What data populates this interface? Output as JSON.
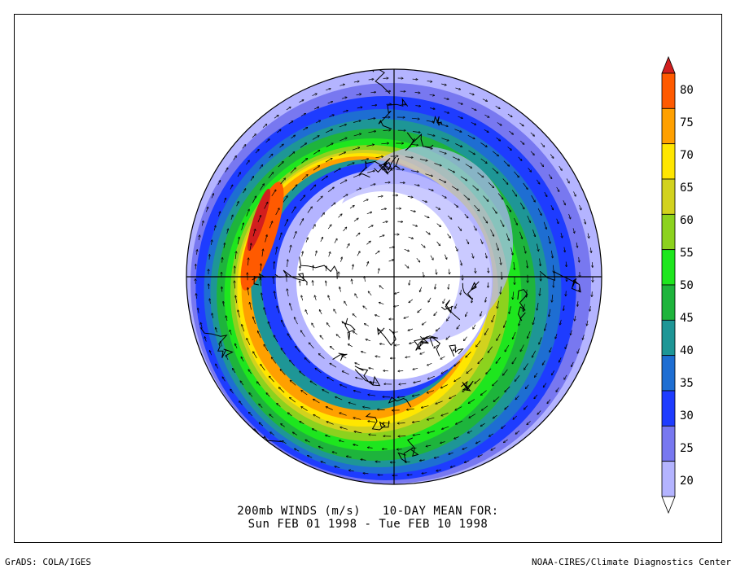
{
  "title_line1": "200mb WINDS (m/s)   10-DAY MEAN FOR:",
  "title_line2": "Sun FEB 01 1998 - Tue FEB 10 1998",
  "footer_left": "GrADS: COLA/IGES",
  "footer_right": "NOAA-CIRES/Climate Diagnostics Center",
  "colorbar": {
    "levels": [
      20,
      25,
      30,
      35,
      40,
      45,
      50,
      55,
      60,
      65,
      70,
      75,
      80
    ],
    "labels": [
      "20",
      "25",
      "30",
      "35",
      "40",
      "45",
      "50",
      "55",
      "60",
      "65",
      "70",
      "75",
      "80"
    ],
    "colors": [
      "#ffffff",
      "#b4b4ff",
      "#7878f0",
      "#1e3cff",
      "#1e6ed2",
      "#1e9696",
      "#1eb43c",
      "#1ee61e",
      "#8cd21e",
      "#d2d21e",
      "#ffe600",
      "#ffa000",
      "#ff5a00",
      "#d21e1e"
    ],
    "units": "m/s"
  },
  "map": {
    "projection": "north-polar-stereographic",
    "field": "200mb wind speed",
    "vectors": "wind arrows"
  }
}
